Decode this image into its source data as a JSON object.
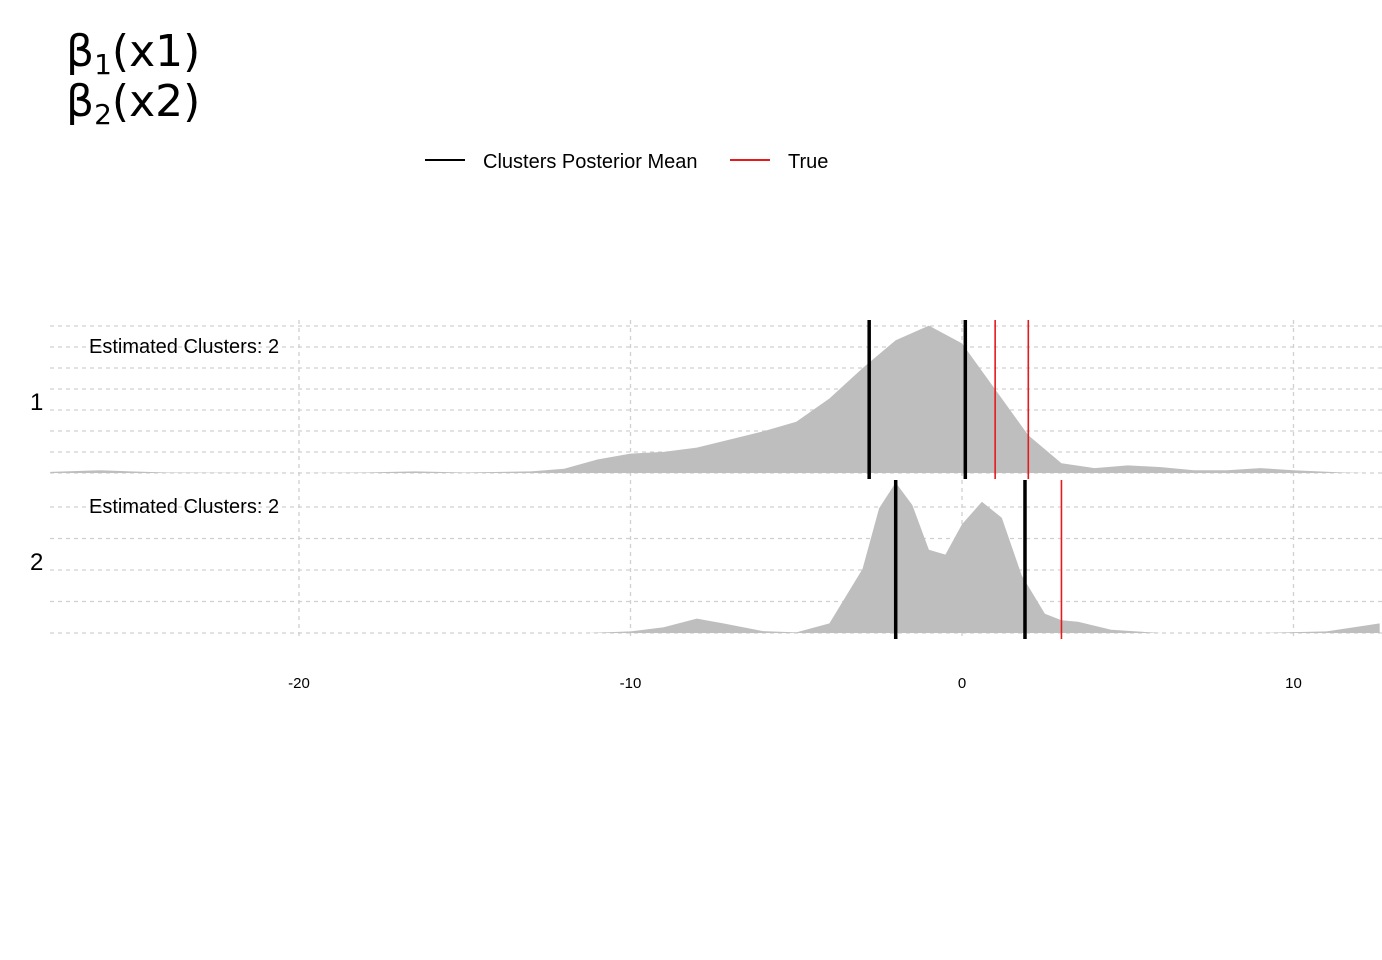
{
  "chart_data": {
    "type": "area",
    "subtype": "ridgeline-density",
    "title_lines": [
      {
        "symbol": "β",
        "sub": "1",
        "rest": "(x1)"
      },
      {
        "symbol": "β",
        "sub": "2",
        "rest": "(x2)"
      }
    ],
    "legend": {
      "placement": "top",
      "items": [
        {
          "label": "Clusters Posterior Mean",
          "color": "#000000"
        },
        {
          "label": "True",
          "color": "#e41a1c"
        }
      ]
    },
    "x_ticks": [
      -20,
      -10,
      0,
      10
    ],
    "x_range": [
      -27.5,
      12.6
    ],
    "grid": true,
    "fill_color": "#bebebe",
    "series": [
      {
        "name": "1",
        "annotation": "Estimated Clusters: 2",
        "posterior_means": [
          -2.8,
          0.1
        ],
        "true_values": [
          1,
          2
        ],
        "density": [
          [
            -27.5,
            0.02
          ],
          [
            -26,
            0.05
          ],
          [
            -24,
            0.01
          ],
          [
            -20,
            0.0
          ],
          [
            -18,
            0.01
          ],
          [
            -16.5,
            0.03
          ],
          [
            -15,
            0.01
          ],
          [
            -13,
            0.03
          ],
          [
            -12,
            0.08
          ],
          [
            -11,
            0.25
          ],
          [
            -10,
            0.36
          ],
          [
            -9,
            0.39
          ],
          [
            -8,
            0.47
          ],
          [
            -7,
            0.62
          ],
          [
            -6,
            0.77
          ],
          [
            -5,
            0.95
          ],
          [
            -4,
            1.38
          ],
          [
            -3,
            1.94
          ],
          [
            -2,
            2.46
          ],
          [
            -1,
            2.73
          ],
          [
            0,
            2.4
          ],
          [
            1,
            1.55
          ],
          [
            2,
            0.7
          ],
          [
            3,
            0.18
          ],
          [
            4,
            0.09
          ],
          [
            5,
            0.14
          ],
          [
            6,
            0.11
          ],
          [
            7,
            0.05
          ],
          [
            8,
            0.05
          ],
          [
            9,
            0.09
          ],
          [
            10,
            0.05
          ],
          [
            11.5,
            0.01
          ],
          [
            12.2,
            0.0
          ]
        ]
      },
      {
        "name": "2",
        "annotation": "Estimated Clusters: 2",
        "posterior_means": [
          -2,
          1.9
        ],
        "true_values": [
          -2,
          3
        ],
        "density": [
          [
            -11.3,
            0.0
          ],
          [
            -10,
            0.05
          ],
          [
            -9,
            0.18
          ],
          [
            -8,
            0.45
          ],
          [
            -7.2,
            0.3
          ],
          [
            -6,
            0.06
          ],
          [
            -5,
            0.02
          ],
          [
            -4,
            0.3
          ],
          [
            -3,
            2.0
          ],
          [
            -2.5,
            3.9
          ],
          [
            -2,
            4.7
          ],
          [
            -1.5,
            4.0
          ],
          [
            -1,
            2.6
          ],
          [
            -0.5,
            2.45
          ],
          [
            0,
            3.4
          ],
          [
            0.6,
            4.1
          ],
          [
            1.2,
            3.6
          ],
          [
            1.8,
            1.8
          ],
          [
            2.5,
            0.6
          ],
          [
            3,
            0.4
          ],
          [
            3.5,
            0.35
          ],
          [
            4.5,
            0.1
          ],
          [
            6,
            0.0
          ],
          [
            9,
            0.0
          ],
          [
            11,
            0.05
          ],
          [
            12.6,
            0.3
          ]
        ]
      }
    ]
  }
}
